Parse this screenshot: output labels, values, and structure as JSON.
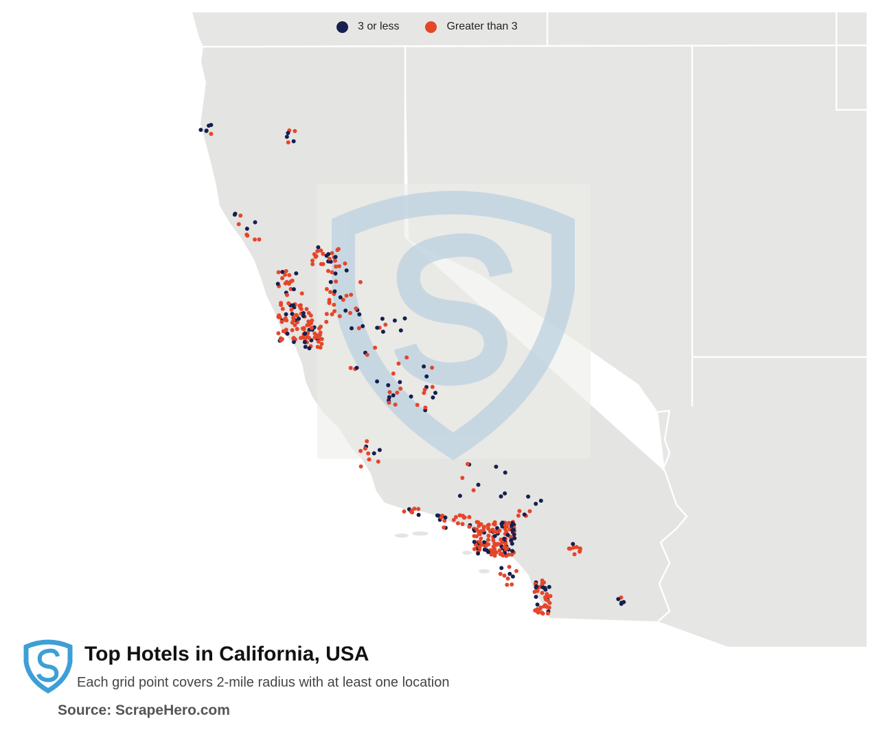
{
  "legend": {
    "items": [
      {
        "label": "3 or less",
        "color": "#16204f"
      },
      {
        "label": "Greater than 3",
        "color": "#e5462a"
      }
    ]
  },
  "title": "Top Hotels in California, USA",
  "subtitle": "Each grid point covers 2-mile radius with at least one location",
  "source": "Source: ScrapeHero.com",
  "colors": {
    "land_focus": "#e4e4e2",
    "land_neighbors": "#e6e6e4",
    "ocean": "#ffffff",
    "borders": "#ffffff",
    "watermark": "#b9d0df",
    "logo": "#3d9fd6",
    "low": "#16204f",
    "high": "#e5462a"
  },
  "icons": {
    "legend_marker": "circle-icon",
    "brand_logo": "scrapehero-shield-logo"
  },
  "map": {
    "region": "California",
    "neighbors": [
      "Oregon",
      "Nevada",
      "Idaho",
      "Arizona",
      "Mexico"
    ]
  }
}
